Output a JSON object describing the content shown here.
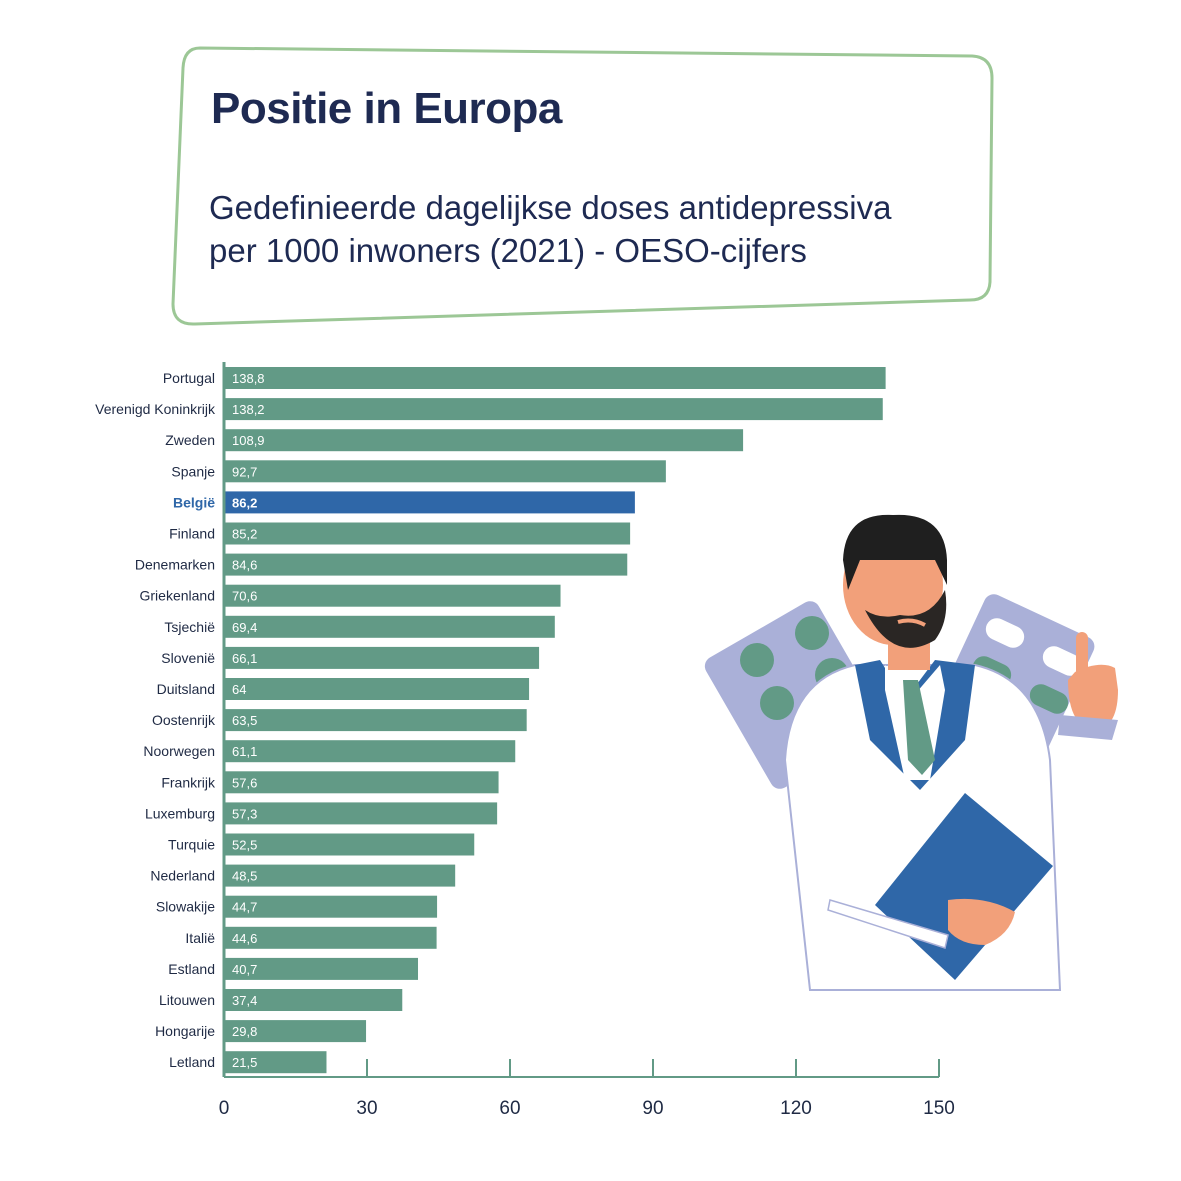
{
  "header": {
    "title": "Positie in Europa",
    "subtitle_line1": "Gedefinieerde dagelijkse doses antidepressiva",
    "subtitle_line2": "per 1000 inwoners (2021) - OESO-cijfers"
  },
  "colors": {
    "bar": "#629a86",
    "highlight": "#2f67a8",
    "axis": "#629a86",
    "frame": "#9cc796",
    "title": "#1e2a52"
  },
  "chart_data": {
    "type": "bar",
    "orientation": "horizontal",
    "categories": [
      "Portugal",
      "Verenigd Koninkrijk",
      "Zweden",
      "Spanje",
      "België",
      "Finland",
      "Denemarken",
      "Griekenland",
      "Tsjechië",
      "Slovenië",
      "Duitsland",
      "Oostenrijk",
      "Noorwegen",
      "Frankrijk",
      "Luxemburg",
      "Turquie",
      "Nederland",
      "Slowakije",
      "Italië",
      "Estland",
      "Litouwen",
      "Hongarije",
      "Letland"
    ],
    "values": [
      138.8,
      138.2,
      108.9,
      92.7,
      86.2,
      85.2,
      84.6,
      70.6,
      69.4,
      66.1,
      64,
      63.5,
      61.1,
      57.6,
      57.3,
      52.5,
      48.5,
      44.7,
      44.6,
      40.7,
      37.4,
      29.8,
      21.5
    ],
    "value_labels": [
      "138,8",
      "138,2",
      "108,9",
      "92,7",
      "86,2",
      "85,2",
      "84,6",
      "70,6",
      "69,4",
      "66,1",
      "64",
      "63,5",
      "61,1",
      "57,6",
      "57,3",
      "52,5",
      "48,5",
      "44,7",
      "44,6",
      "40,7",
      "37,4",
      "29,8",
      "21,5"
    ],
    "highlight": "België",
    "xlim": [
      0,
      150
    ],
    "xticks": [
      0,
      30,
      60,
      90,
      120,
      150
    ],
    "xtick_labels": [
      "0",
      "30",
      "60",
      "90",
      "120",
      "150"
    ],
    "grid": false,
    "legend": "none"
  }
}
